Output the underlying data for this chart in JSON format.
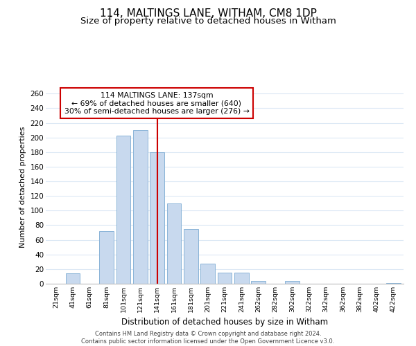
{
  "title": "114, MALTINGS LANE, WITHAM, CM8 1DP",
  "subtitle": "Size of property relative to detached houses in Witham",
  "xlabel": "Distribution of detached houses by size in Witham",
  "ylabel": "Number of detached properties",
  "bar_labels": [
    "21sqm",
    "41sqm",
    "61sqm",
    "81sqm",
    "101sqm",
    "121sqm",
    "141sqm",
    "161sqm",
    "181sqm",
    "201sqm",
    "221sqm",
    "241sqm",
    "262sqm",
    "282sqm",
    "302sqm",
    "322sqm",
    "342sqm",
    "362sqm",
    "382sqm",
    "402sqm",
    "422sqm"
  ],
  "bar_values": [
    0,
    14,
    0,
    72,
    203,
    210,
    180,
    110,
    75,
    27,
    15,
    15,
    4,
    0,
    4,
    0,
    0,
    0,
    0,
    0,
    1
  ],
  "bar_color": "#c8d9ee",
  "bar_edge_color": "#8ab4d8",
  "vline_x": 6,
  "vline_color": "#cc0000",
  "ylim": [
    0,
    265
  ],
  "yticks": [
    0,
    20,
    40,
    60,
    80,
    100,
    120,
    140,
    160,
    180,
    200,
    220,
    240,
    260
  ],
  "annotation_title": "114 MALTINGS LANE: 137sqm",
  "annotation_line1": "← 69% of detached houses are smaller (640)",
  "annotation_line2": "30% of semi-detached houses are larger (276) →",
  "annotation_box_color": "#ffffff",
  "annotation_box_edge": "#cc0000",
  "footer_line1": "Contains HM Land Registry data © Crown copyright and database right 2024.",
  "footer_line2": "Contains public sector information licensed under the Open Government Licence v3.0.",
  "background_color": "#ffffff",
  "grid_color": "#dce8f5",
  "title_fontsize": 11,
  "subtitle_fontsize": 9.5
}
